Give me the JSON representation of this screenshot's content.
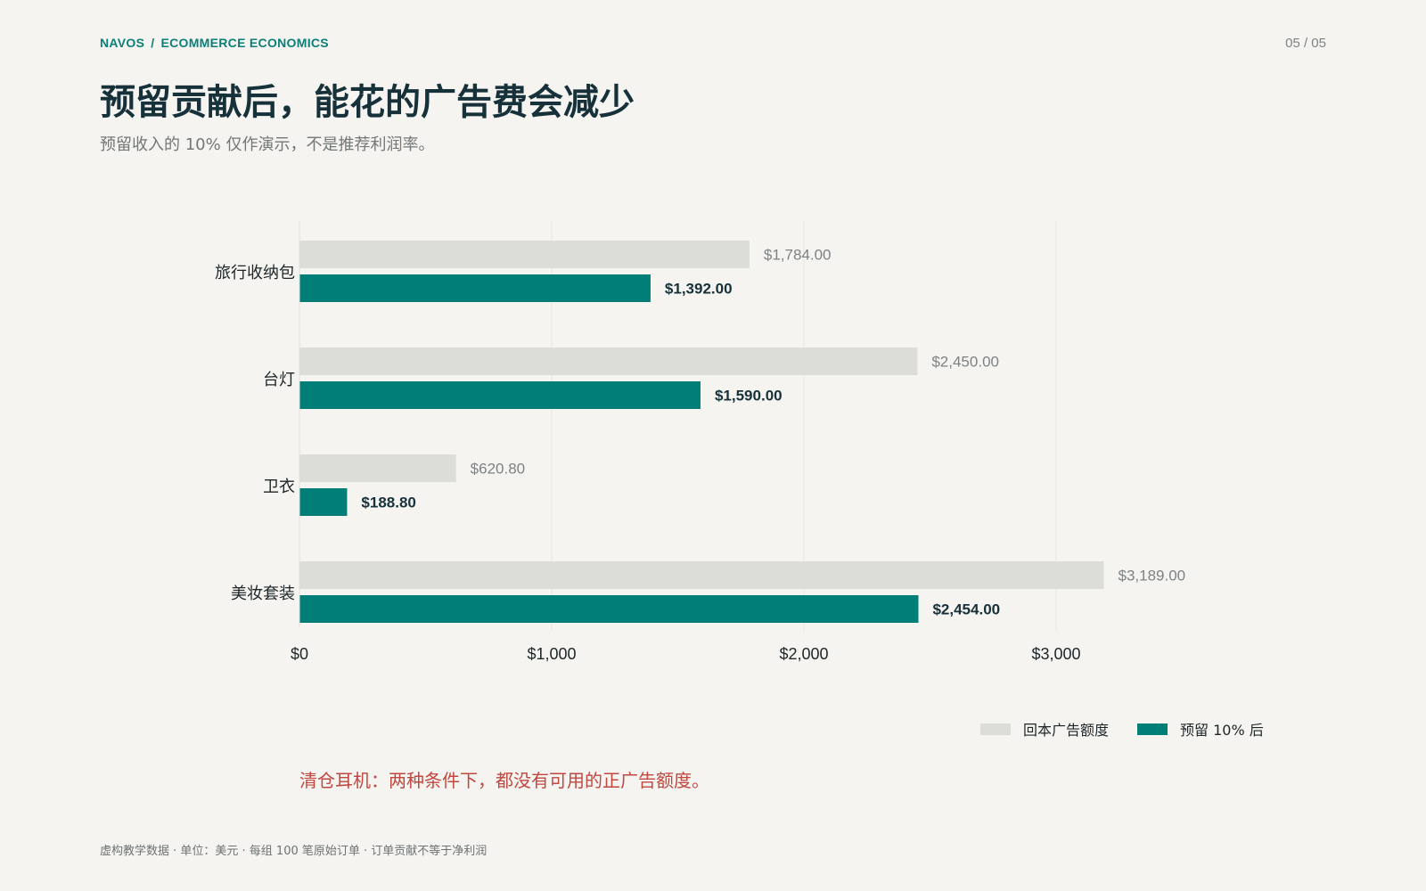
{
  "header": {
    "brand": "NAVOS",
    "separator": "/",
    "section": "ECOMMERCE ECONOMICS",
    "page_indicator": "05 / 05"
  },
  "title": "预留贡献后，能花的广告费会减少",
  "subtitle": "预留收入的 10% 仅作演示，不是推荐利润率。",
  "colors": {
    "original": "#dcddd8",
    "reserved": "#007f78",
    "note": "#c0483f",
    "accent": "#0b7f78"
  },
  "chart_data": {
    "type": "bar",
    "orientation": "horizontal",
    "categories": [
      "旅行收纳包",
      "台灯",
      "卫衣",
      "美妆套装"
    ],
    "series": [
      {
        "name": "回本广告额度",
        "values": [
          1784.0,
          2450.0,
          620.8,
          3189.0
        ],
        "labels": [
          "$1,784.00",
          "$2,450.00",
          "$620.80",
          "$3,189.00"
        ]
      },
      {
        "name": "预留 10% 后",
        "values": [
          1392.0,
          1590.0,
          188.8,
          2454.0
        ],
        "labels": [
          "$1,392.00",
          "$1,590.00",
          "$188.80",
          "$2,454.00"
        ]
      }
    ],
    "xticks": [
      0,
      1000,
      2000,
      3000
    ],
    "xtick_labels": [
      "$0",
      "$1,000",
      "$2,000",
      "$3,000"
    ],
    "xlim": [
      0,
      3500
    ],
    "grid": true,
    "legend_position": "bottom-right"
  },
  "legend": {
    "original": "回本广告额度",
    "reserved": "预留 10% 后"
  },
  "note": "清仓耳机：两种条件下，都没有可用的正广告额度。",
  "footer": "虚构教学数据 · 单位：美元 · 每组 100 笔原始订单 · 订单贡献不等于净利润"
}
